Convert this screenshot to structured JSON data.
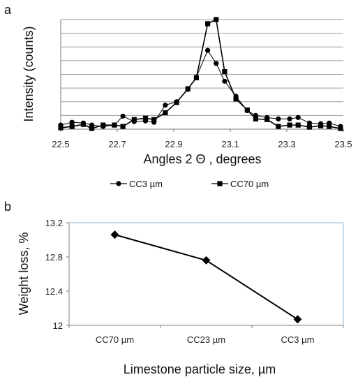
{
  "chart_data": [
    {
      "panel": "a",
      "type": "line",
      "xlabel": "Angles 2 Θ , degrees",
      "ylabel": "Intensity (counts)",
      "xlim": [
        22.5,
        23.5
      ],
      "ylim": [
        0,
        8
      ],
      "x_ticks": [
        "22.5",
        "22.7",
        "22.9",
        "23.1",
        "23.3",
        "23.5"
      ],
      "show_y_tick_labels": false,
      "grid": "horizontal",
      "legend": "bottom",
      "series": [
        {
          "name": "CC3 µm",
          "marker": "circle",
          "color": "#000000",
          "points": [
            [
              22.5,
              0.3
            ],
            [
              22.54,
              0.5
            ],
            [
              22.58,
              0.45
            ],
            [
              22.61,
              0.3
            ],
            [
              22.65,
              0.2
            ],
            [
              22.69,
              0.3
            ],
            [
              22.72,
              0.95
            ],
            [
              22.76,
              0.55
            ],
            [
              22.8,
              0.6
            ],
            [
              22.83,
              0.5
            ],
            [
              22.87,
              1.75
            ],
            [
              22.91,
              2.0
            ],
            [
              22.95,
              2.9
            ],
            [
              22.98,
              3.8
            ],
            [
              23.02,
              5.75
            ],
            [
              23.05,
              4.8
            ],
            [
              23.08,
              3.5
            ],
            [
              23.12,
              2.4
            ],
            [
              23.16,
              1.35
            ],
            [
              23.19,
              1.0
            ],
            [
              23.23,
              0.85
            ],
            [
              23.27,
              0.75
            ],
            [
              23.31,
              0.75
            ],
            [
              23.34,
              0.85
            ],
            [
              23.38,
              0.45
            ],
            [
              23.42,
              0.4
            ],
            [
              23.45,
              0.45
            ],
            [
              23.49,
              0.2
            ]
          ]
        },
        {
          "name": "CC70 µm",
          "marker": "square",
          "color": "#000000",
          "points": [
            [
              22.5,
              0.1
            ],
            [
              22.54,
              0.2
            ],
            [
              22.58,
              0.35
            ],
            [
              22.61,
              0.05
            ],
            [
              22.65,
              0.3
            ],
            [
              22.69,
              0.3
            ],
            [
              22.72,
              0.2
            ],
            [
              22.76,
              0.7
            ],
            [
              22.8,
              0.8
            ],
            [
              22.83,
              0.7
            ],
            [
              22.87,
              1.2
            ],
            [
              22.91,
              1.95
            ],
            [
              22.95,
              2.95
            ],
            [
              22.98,
              3.75
            ],
            [
              23.02,
              7.7
            ],
            [
              23.05,
              8.0
            ],
            [
              23.08,
              4.2
            ],
            [
              23.12,
              2.2
            ],
            [
              23.16,
              1.4
            ],
            [
              23.19,
              0.75
            ],
            [
              23.23,
              0.7
            ],
            [
              23.27,
              0.2
            ],
            [
              23.31,
              0.3
            ],
            [
              23.34,
              0.3
            ],
            [
              23.38,
              0.15
            ],
            [
              23.42,
              0.25
            ],
            [
              23.45,
              0.2
            ],
            [
              23.49,
              0.05
            ]
          ]
        }
      ]
    },
    {
      "panel": "b",
      "type": "line",
      "xlabel": "Limestone particle size, µm",
      "ylabel": "Weight loss, %",
      "categories": [
        "CC70 µm",
        "CC23 µm",
        "CC3 µm"
      ],
      "values": [
        13.06,
        12.76,
        12.07
      ],
      "marker": "diamond",
      "ylim": [
        12,
        13.2
      ],
      "y_ticks": [
        "12",
        "12.4",
        "12.8",
        "13.2"
      ],
      "grid": "off"
    }
  ],
  "labels": {
    "panel_a": "a",
    "panel_b": "b"
  }
}
